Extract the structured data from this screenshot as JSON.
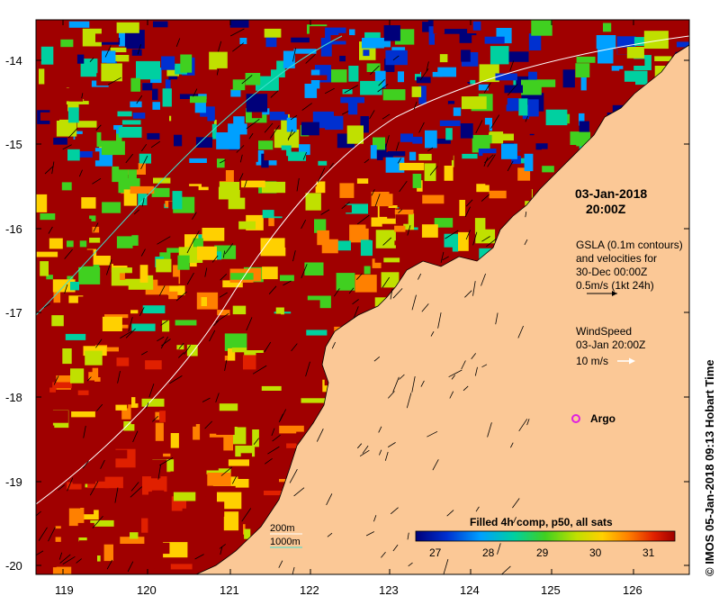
{
  "map": {
    "date_title": "03-Jan-2018",
    "time_title": "20:00Z",
    "x_ticks": [
      "119",
      "120",
      "121",
      "122",
      "123",
      "124",
      "125",
      "126"
    ],
    "y_ticks": [
      "-14",
      "-15",
      "-16",
      "-17",
      "-18",
      "-19",
      "-20"
    ],
    "gsla": {
      "line1": "GSLA (0.1m contours)",
      "line2": "and velocities for",
      "line3": "30-Dec 00:00Z",
      "line4": "0.5m/s (1kt 24h)"
    },
    "wind": {
      "line1": "WindSpeed",
      "line2": "03-Jan 20:00Z",
      "line3": "10 m/s"
    },
    "argo_label": "Argo",
    "depth_legend": [
      "200m",
      "1000m"
    ],
    "colorbar": {
      "title": "Filled 4h comp, p50, all sats",
      "ticks": [
        "27",
        "28",
        "29",
        "30",
        "31"
      ]
    },
    "credit": "© IMOS 05-Jan-2018 09:13 Hobart Time",
    "colors": {
      "land": "#fbc896",
      "sst_hot": "#a00000",
      "sst_cold": "#00007a",
      "argo": "#e020e0",
      "bathy_200": "#ffffff",
      "bathy_1000": "#40e0d0"
    }
  }
}
